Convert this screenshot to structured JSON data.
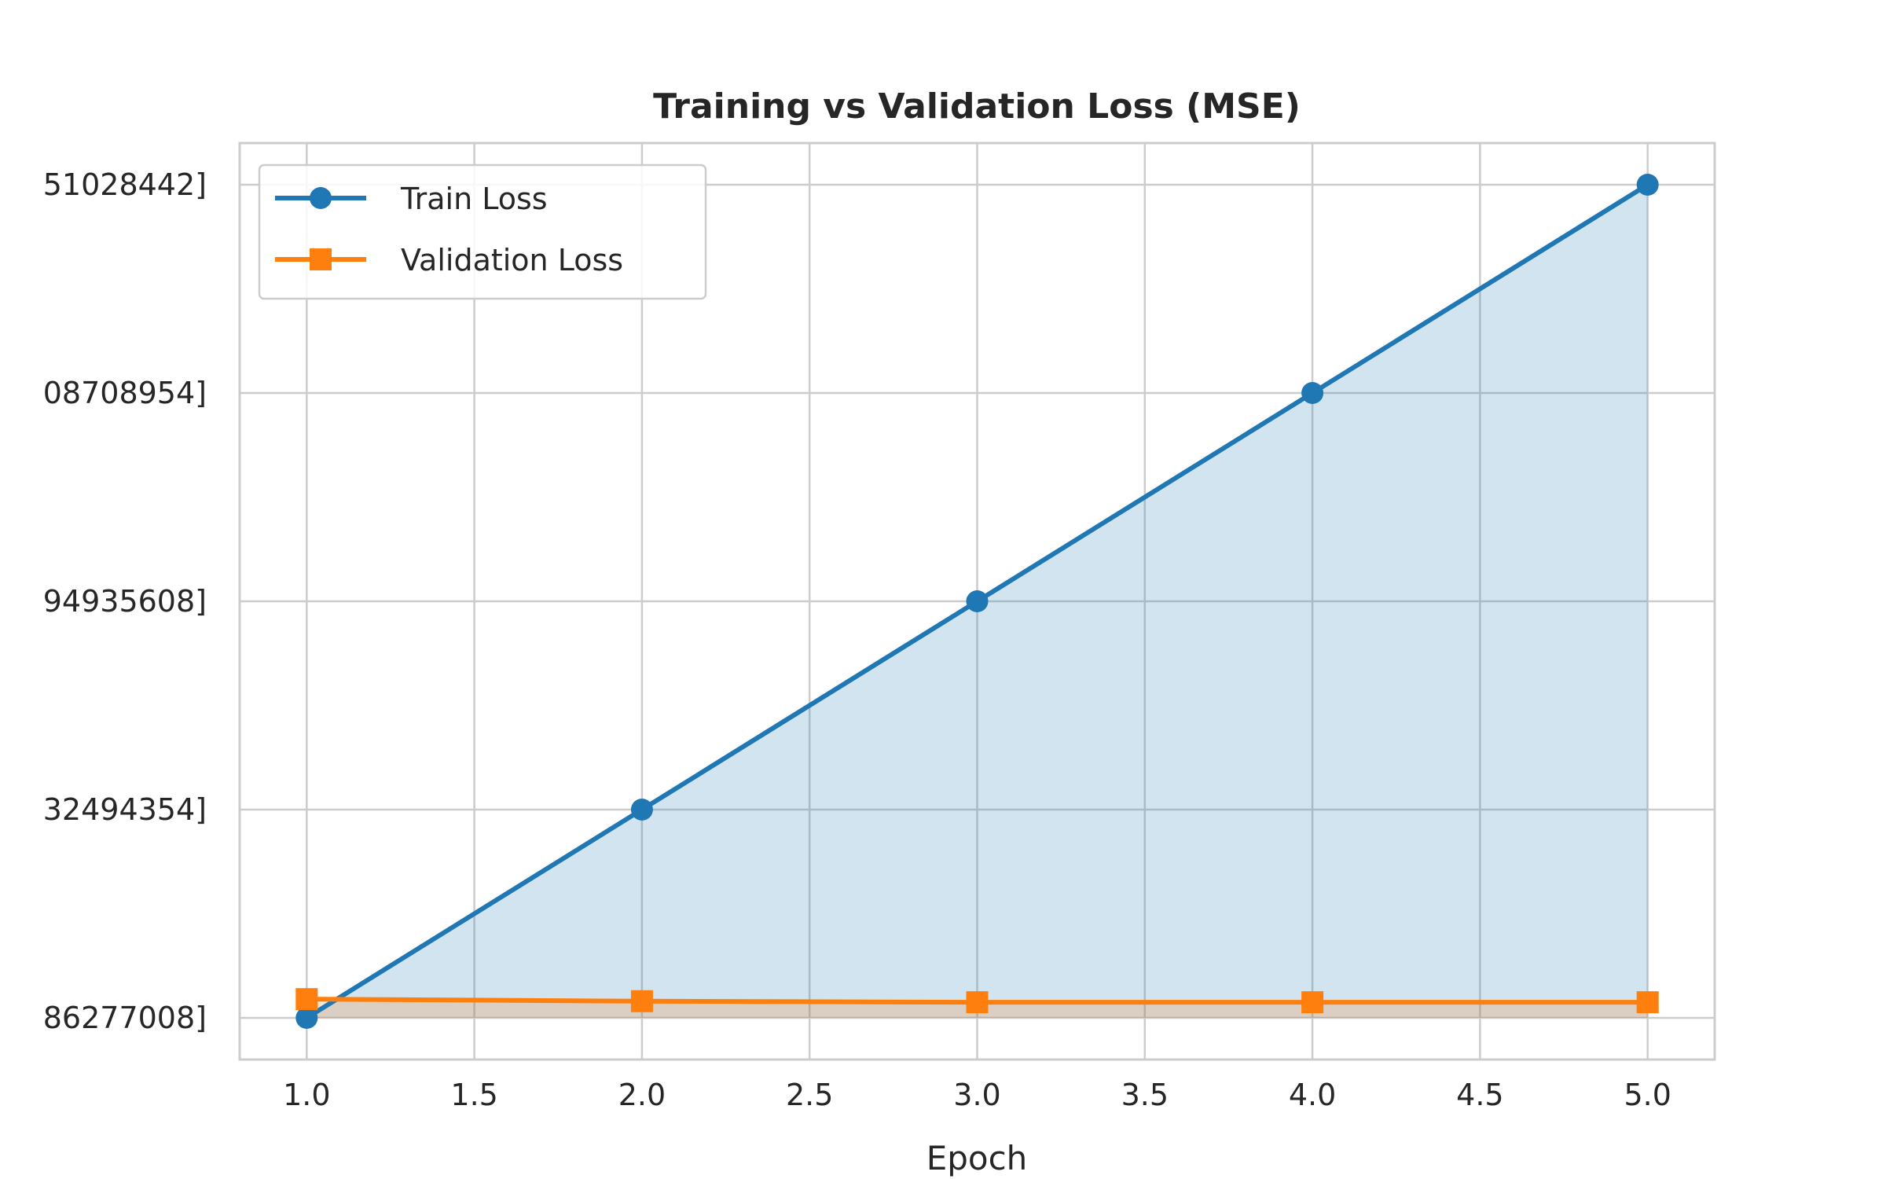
{
  "chart_data": {
    "type": "line",
    "title": "Training vs Validation Loss (MSE)",
    "xlabel": "Epoch",
    "ylabel": "",
    "x": [
      1,
      2,
      3,
      4,
      5
    ],
    "xlim": [
      0.8,
      5.2
    ],
    "x_ticks": [
      1.0,
      1.5,
      2.0,
      2.5,
      3.0,
      3.5,
      4.0,
      4.5,
      5.0
    ],
    "x_tick_labels": [
      "1.0",
      "1.5",
      "2.0",
      "2.5",
      "3.0",
      "3.5",
      "4.0",
      "4.5",
      "5.0"
    ],
    "ylim": [
      -0.2,
      4.2
    ],
    "y_ticks": [
      0,
      1,
      2,
      3,
      4
    ],
    "y_tick_labels": [
      "86277008]",
      "32494354]",
      "94935608]",
      "08708954]",
      "51028442]"
    ],
    "grid": true,
    "legend_position": "top-left",
    "series": [
      {
        "name": "Train Loss",
        "values": [
          0,
          1,
          2,
          3,
          4
        ],
        "color": "#1f77b4",
        "marker": "circle",
        "fill": true
      },
      {
        "name": "Validation Loss",
        "values": [
          0.09,
          0.08,
          0.075,
          0.075,
          0.075
        ],
        "color": "#ff7f0e",
        "marker": "square",
        "fill": true
      }
    ]
  }
}
